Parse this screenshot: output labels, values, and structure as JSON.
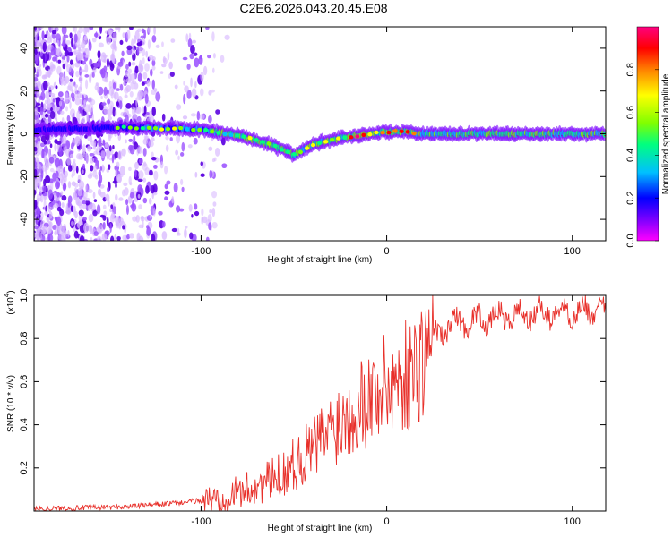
{
  "title": "C2E6.2026.043.20.45.E08",
  "colors": {
    "signal": "#e8302a",
    "frame": "#000000",
    "colormap": [
      "#ff00ff",
      "#7a00ff",
      "#0000ff",
      "#00c0ff",
      "#00ff80",
      "#80ff00",
      "#ffff00",
      "#ff8000",
      "#ff0000",
      "#ff0080"
    ]
  },
  "chart_data": [
    {
      "type": "heatmap",
      "name": "spectrogram",
      "xlabel": "Height of straight line (km)",
      "ylabel": "Frequency (Hz)",
      "xlim": [
        -190,
        118
      ],
      "ylim": [
        -50,
        50
      ],
      "xticks": [
        -100,
        0,
        100
      ],
      "yticks": [
        -40,
        -20,
        0,
        20,
        40
      ],
      "colorbar": {
        "label": "Normalized spectral amplitude",
        "range": [
          0,
          1
        ],
        "ticks": [
          0.0,
          0.2,
          0.4,
          0.6,
          0.8
        ]
      },
      "ridge": [
        {
          "x": -190,
          "f": 2
        },
        {
          "x": -140,
          "f": 3
        },
        {
          "x": -100,
          "f": 2
        },
        {
          "x": -85,
          "f": 0
        },
        {
          "x": -70,
          "f": -3
        },
        {
          "x": -60,
          "f": -6
        },
        {
          "x": -50,
          "f": -10
        },
        {
          "x": -40,
          "f": -5
        },
        {
          "x": -25,
          "f": -2
        },
        {
          "x": -10,
          "f": 0
        },
        {
          "x": 0,
          "f": 1
        },
        {
          "x": 10,
          "f": 1
        },
        {
          "x": 20,
          "f": 0
        },
        {
          "x": 118,
          "f": 0
        }
      ]
    },
    {
      "type": "line",
      "name": "snr",
      "xlabel": "Height of straight line (km)",
      "ylabel": "SNR (10 * v/v)",
      "scale_label": "(x10",
      "scale_exponent": "4",
      "xlim": [
        -190,
        118
      ],
      "ylim": [
        0,
        1.0
      ],
      "xticks": [
        -100,
        0,
        100
      ],
      "yticks": [
        0.2,
        0.4,
        0.6,
        0.8,
        1.0
      ],
      "trend": [
        {
          "x": -190,
          "y": 0.01
        },
        {
          "x": -140,
          "y": 0.02
        },
        {
          "x": -110,
          "y": 0.04
        },
        {
          "x": -90,
          "y": 0.06
        },
        {
          "x": -75,
          "y": 0.1
        },
        {
          "x": -60,
          "y": 0.15
        },
        {
          "x": -45,
          "y": 0.25
        },
        {
          "x": -30,
          "y": 0.38
        },
        {
          "x": -15,
          "y": 0.5
        },
        {
          "x": 0,
          "y": 0.58
        },
        {
          "x": 15,
          "y": 0.65
        },
        {
          "x": 25,
          "y": 0.8
        },
        {
          "x": 35,
          "y": 0.87
        },
        {
          "x": 60,
          "y": 0.9
        },
        {
          "x": 90,
          "y": 0.92
        },
        {
          "x": 118,
          "y": 0.93
        }
      ]
    }
  ]
}
